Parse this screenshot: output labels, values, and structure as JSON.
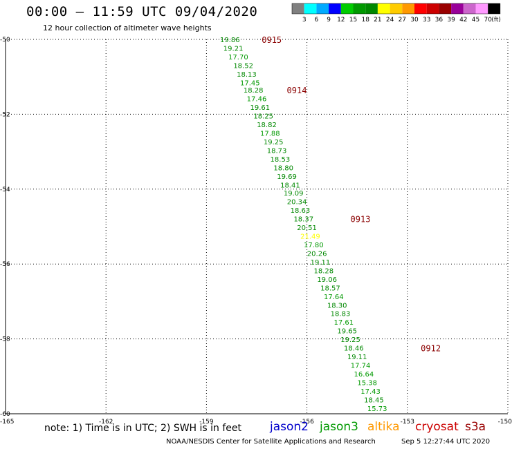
{
  "header": {
    "title": "00:00 – 11:59 UTC 09/04/2020",
    "subtitle": "12 hour collection of altimeter wave heights"
  },
  "footer": {
    "note": "note:  1) Time is in UTC;  2) SWH is in feet",
    "credit": "NOAA/NESDIS Center for Satellite Applications and Research",
    "timestamp": "Sep  5 12:27:44 UTC 2020"
  },
  "satellites": [
    {
      "name": "jason2",
      "color": "#0000cc"
    },
    {
      "name": "jason3",
      "color": "#009900"
    },
    {
      "name": "altika",
      "color": "#ff9900"
    },
    {
      "name": "cryosat",
      "color": "#cc0000"
    },
    {
      "name": "s3a",
      "color": "#990000"
    }
  ],
  "colorbar": {
    "unit": "(ft)",
    "labels": [
      "3",
      "6",
      "9",
      "12",
      "15",
      "18",
      "21",
      "24",
      "27",
      "30",
      "33",
      "36",
      "39",
      "42",
      "45",
      "70"
    ],
    "colors": [
      "#808080",
      "#00ffff",
      "#00aaff",
      "#0000ff",
      "#00cc00",
      "#009900",
      "#008800",
      "#ffff00",
      "#ffcc00",
      "#ff9900",
      "#ff0000",
      "#cc0000",
      "#990000",
      "#990099",
      "#cc66cc",
      "#ff99ff",
      "#000000"
    ]
  },
  "chart_data": {
    "type": "scatter",
    "title": "00:00 – 11:59 UTC 09/04/2020",
    "xlim": [
      -165,
      -150
    ],
    "ylim": [
      -60,
      -50
    ],
    "xticks": [
      "-165",
      "-162",
      "-159",
      "-156",
      "-153",
      "-150"
    ],
    "yticks": [
      "-50",
      "-52",
      "-54",
      "-56",
      "-58",
      "-60"
    ],
    "grid": true,
    "series": [
      {
        "name": "jason3",
        "points": [
          {
            "lon": -158.3,
            "lat": -50.0,
            "swh": "19.86"
          },
          {
            "lon": -158.2,
            "lat": -50.23,
            "swh": "19.21"
          },
          {
            "lon": -158.05,
            "lat": -50.46,
            "swh": "17.70"
          },
          {
            "lon": -157.9,
            "lat": -50.69,
            "swh": "18.52"
          },
          {
            "lon": -157.8,
            "lat": -50.92,
            "swh": "18.13"
          },
          {
            "lon": -157.7,
            "lat": -51.15,
            "swh": "17.45"
          },
          {
            "lon": -157.6,
            "lat": -51.35,
            "swh": "18.28"
          },
          {
            "lon": -157.5,
            "lat": -51.58,
            "swh": "17.46"
          },
          {
            "lon": -157.4,
            "lat": -51.81,
            "swh": "19.61"
          },
          {
            "lon": -157.3,
            "lat": -52.04,
            "swh": "18.25"
          },
          {
            "lon": -157.2,
            "lat": -52.27,
            "swh": "18.82"
          },
          {
            "lon": -157.1,
            "lat": -52.5,
            "swh": "17.88"
          },
          {
            "lon": -157.0,
            "lat": -52.73,
            "swh": "19.25"
          },
          {
            "lon": -156.9,
            "lat": -52.96,
            "swh": "18.73"
          },
          {
            "lon": -156.8,
            "lat": -53.19,
            "swh": "18.53"
          },
          {
            "lon": -156.7,
            "lat": -53.42,
            "swh": "18.80"
          },
          {
            "lon": -156.6,
            "lat": -53.65,
            "swh": "19.69"
          },
          {
            "lon": -156.5,
            "lat": -53.88,
            "swh": "18.41"
          },
          {
            "lon": -156.4,
            "lat": -54.1,
            "swh": "19.09"
          },
          {
            "lon": -156.3,
            "lat": -54.33,
            "swh": "20.34"
          },
          {
            "lon": -156.2,
            "lat": -54.56,
            "swh": "18.63"
          },
          {
            "lon": -156.1,
            "lat": -54.79,
            "swh": "18.37"
          },
          {
            "lon": -156.0,
            "lat": -55.02,
            "swh": "20.51"
          },
          {
            "lon": -155.9,
            "lat": -55.25,
            "swh": "21.49"
          },
          {
            "lon": -155.8,
            "lat": -55.48,
            "swh": "17.80"
          },
          {
            "lon": -155.7,
            "lat": -55.71,
            "swh": "20.26"
          },
          {
            "lon": -155.6,
            "lat": -55.94,
            "swh": "19.11"
          },
          {
            "lon": -155.5,
            "lat": -56.17,
            "swh": "18.28"
          },
          {
            "lon": -155.4,
            "lat": -56.4,
            "swh": "19.06"
          },
          {
            "lon": -155.3,
            "lat": -56.63,
            "swh": "18.57"
          },
          {
            "lon": -155.2,
            "lat": -56.86,
            "swh": "17.64"
          },
          {
            "lon": -155.1,
            "lat": -57.09,
            "swh": "18.30"
          },
          {
            "lon": -155.0,
            "lat": -57.32,
            "swh": "18.83"
          },
          {
            "lon": -154.9,
            "lat": -57.55,
            "swh": "17.61"
          },
          {
            "lon": -154.8,
            "lat": -57.78,
            "swh": "19.65"
          },
          {
            "lon": -154.7,
            "lat": -58.01,
            "swh": "19.25"
          },
          {
            "lon": -154.6,
            "lat": -58.24,
            "swh": "18.46"
          },
          {
            "lon": -154.5,
            "lat": -58.47,
            "swh": "19.11"
          },
          {
            "lon": -154.4,
            "lat": -58.7,
            "swh": "17.74"
          },
          {
            "lon": -154.3,
            "lat": -58.93,
            "swh": "16.64"
          },
          {
            "lon": -154.2,
            "lat": -59.16,
            "swh": "15.38"
          },
          {
            "lon": -154.1,
            "lat": -59.39,
            "swh": "17.43"
          },
          {
            "lon": -154.0,
            "lat": -59.62,
            "swh": "18.45"
          },
          {
            "lon": -153.9,
            "lat": -59.85,
            "swh": "15.73"
          }
        ],
        "time_labels": [
          {
            "text": "0915",
            "lon": -157.35,
            "lat": -50.0
          },
          {
            "text": "0914",
            "lon": -156.6,
            "lat": -51.35
          },
          {
            "text": "0913",
            "lon": -154.7,
            "lat": -54.79
          },
          {
            "text": "0912",
            "lon": -152.6,
            "lat": -58.24
          }
        ]
      }
    ]
  }
}
